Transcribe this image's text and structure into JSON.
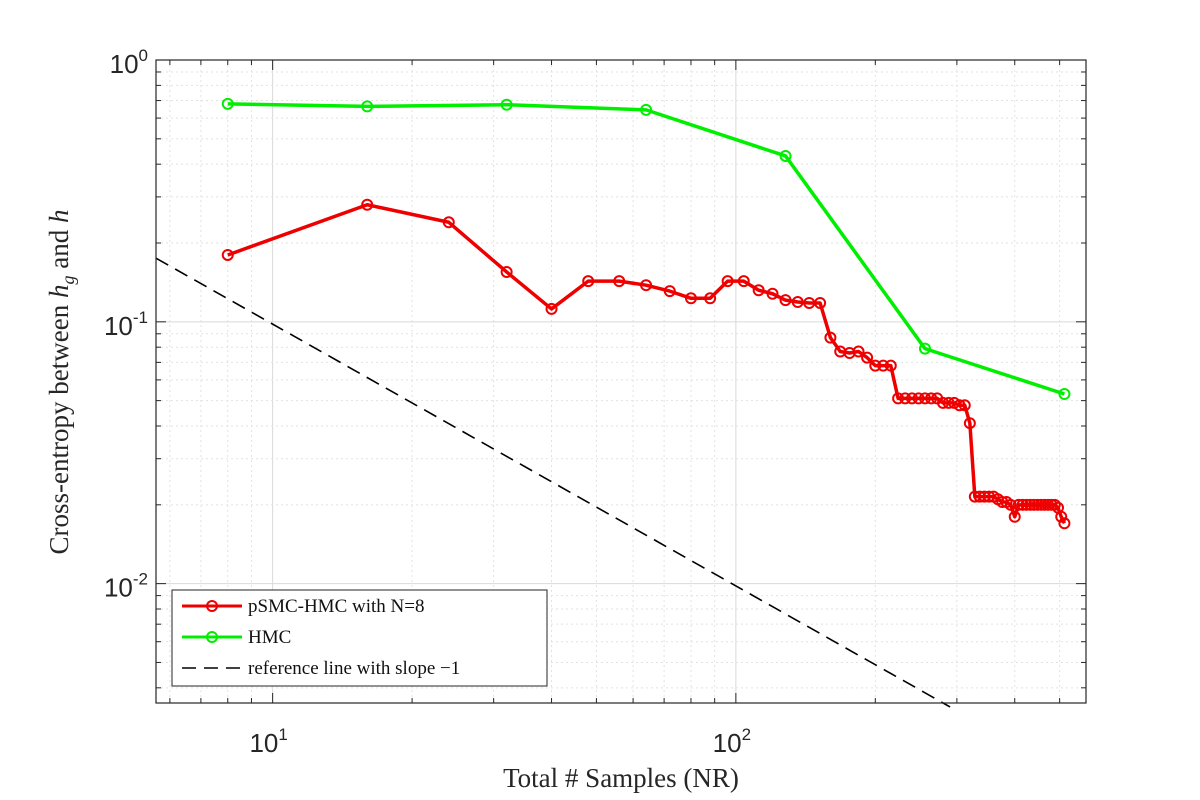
{
  "chart_data": {
    "type": "line",
    "xscale": "log",
    "yscale": "log",
    "xlim": [
      5.6,
      570
    ],
    "ylim": [
      0.0035,
      1.0
    ],
    "xlabel": "Total # Samples (NR)",
    "ylabel": {
      "prefix": "Cross-entropy between ",
      "var1": "h",
      "var1_sub": "g",
      "middle": " and ",
      "var2": "h"
    },
    "xticks": [
      {
        "value": 10,
        "base": "10",
        "exp": "1"
      },
      {
        "value": 100,
        "base": "10",
        "exp": "2"
      }
    ],
    "yticks": [
      {
        "value": 1,
        "base": "10",
        "exp": "0"
      },
      {
        "value": 0.1,
        "base": "10",
        "exp": "-1"
      },
      {
        "value": 0.01,
        "base": "10",
        "exp": "-2"
      }
    ],
    "grid": true,
    "legend_position": "bottom-left",
    "series": [
      {
        "name": "pSMC-HMC with N=8",
        "color": "#ee0000",
        "marker": "circle",
        "x": [
          8,
          16,
          24,
          32,
          40,
          48,
          56,
          64,
          72,
          80,
          88,
          96,
          104,
          112,
          120,
          128,
          136,
          144,
          152,
          160,
          168,
          176,
          184,
          192,
          200,
          208,
          216,
          224,
          232,
          240,
          248,
          256,
          264,
          272,
          280,
          288,
          296,
          304,
          312,
          320,
          328,
          336,
          344,
          352,
          360,
          368,
          376,
          384,
          392,
          400,
          408,
          416,
          424,
          432,
          440,
          448,
          456,
          464,
          472,
          480,
          488,
          496,
          504,
          512
        ],
        "y": [
          0.18,
          0.28,
          0.24,
          0.155,
          0.112,
          0.143,
          0.143,
          0.138,
          0.131,
          0.123,
          0.123,
          0.143,
          0.143,
          0.132,
          0.128,
          0.121,
          0.119,
          0.118,
          0.118,
          0.087,
          0.077,
          0.076,
          0.077,
          0.073,
          0.068,
          0.068,
          0.068,
          0.051,
          0.051,
          0.051,
          0.051,
          0.051,
          0.051,
          0.051,
          0.049,
          0.049,
          0.049,
          0.048,
          0.048,
          0.041,
          0.0215,
          0.0215,
          0.0215,
          0.0215,
          0.0215,
          0.021,
          0.0205,
          0.0205,
          0.02,
          0.018,
          0.02,
          0.02,
          0.02,
          0.02,
          0.02,
          0.02,
          0.02,
          0.02,
          0.02,
          0.02,
          0.02,
          0.0195,
          0.018,
          0.017
        ]
      },
      {
        "name": "HMC",
        "color": "#00ee00",
        "marker": "circle",
        "x": [
          8,
          16,
          32,
          64,
          128,
          256,
          512
        ],
        "y": [
          0.68,
          0.665,
          0.675,
          0.645,
          0.43,
          0.079,
          0.053
        ]
      }
    ],
    "reference_line": {
      "name": "reference line with slope −1",
      "color": "#000000",
      "style": "dashed",
      "x": [
        5.6,
        290
      ],
      "y": [
        0.175,
        0.00338
      ]
    }
  }
}
